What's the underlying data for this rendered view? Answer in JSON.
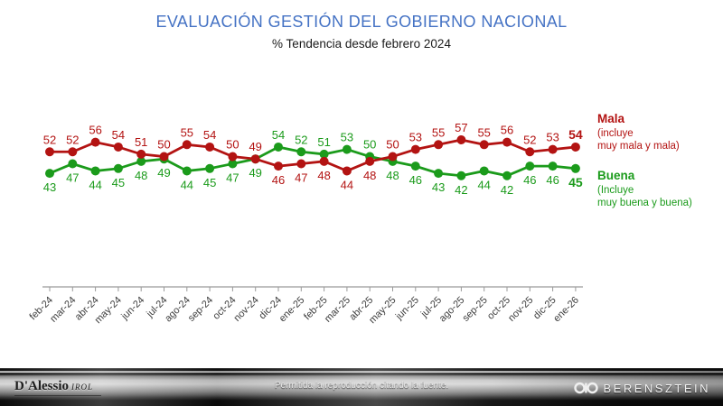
{
  "header": {
    "title": "EVALUACIÓN GESTIÓN DEL GOBIERNO NACIONAL",
    "subtitle": "% Tendencia desde febrero 2024"
  },
  "colors": {
    "title_blue": "#4472C4",
    "mala_red": "#B31312",
    "buena_green": "#1B9B1B",
    "axis_gray": "#9A9A9A",
    "tick_label_dark": "#3D3D3D"
  },
  "chart_data": {
    "type": "line",
    "title": "EVALUACIÓN GESTIÓN DEL GOBIERNO NACIONAL",
    "subtitle": "% Tendencia desde febrero 2024",
    "xlabel": "",
    "ylabel": "%",
    "ylim": [
      40,
      60
    ],
    "grid": false,
    "legend_position": "right",
    "categories": [
      "feb-24",
      "mar-24",
      "abr-24",
      "may-24",
      "jun-24",
      "jul-24",
      "ago-24",
      "sep-24",
      "oct-24",
      "nov-24",
      "dic-24",
      "ene-25",
      "feb-25",
      "mar-25",
      "abr-25",
      "may-25",
      "jun-25",
      "jul-25",
      "ago-25",
      "sep-25",
      "oct-25",
      "nov-25",
      "dic-25",
      "ene-26"
    ],
    "series": [
      {
        "name": "Mala",
        "color": "#B31312",
        "values": [
          52,
          52,
          56,
          54,
          51,
          50,
          55,
          54,
          50,
          49,
          46,
          47,
          48,
          44,
          48,
          50,
          53,
          55,
          57,
          55,
          56,
          52,
          53,
          54
        ]
      },
      {
        "name": "Buena",
        "color": "#1B9B1B",
        "values": [
          43,
          47,
          44,
          45,
          48,
          49,
          44,
          45,
          47,
          49,
          54,
          52,
          51,
          53,
          50,
          48,
          46,
          43,
          42,
          44,
          42,
          46,
          46,
          45
        ]
      }
    ],
    "last_point_labels_bold": true
  },
  "legend": {
    "mala": {
      "title": "Mala",
      "line1": "(incluye",
      "line2": "muy mala y mala)"
    },
    "buena": {
      "title": "Buena",
      "line1": "(Incluye",
      "line2": "muy buena y buena)"
    }
  },
  "footer": {
    "left_logo": {
      "name": "D'Alessio",
      "suffix": "IROL"
    },
    "center_text": "Permitida la reproducción citando la fuente.",
    "right_logo": "BERENSZTEIN"
  }
}
